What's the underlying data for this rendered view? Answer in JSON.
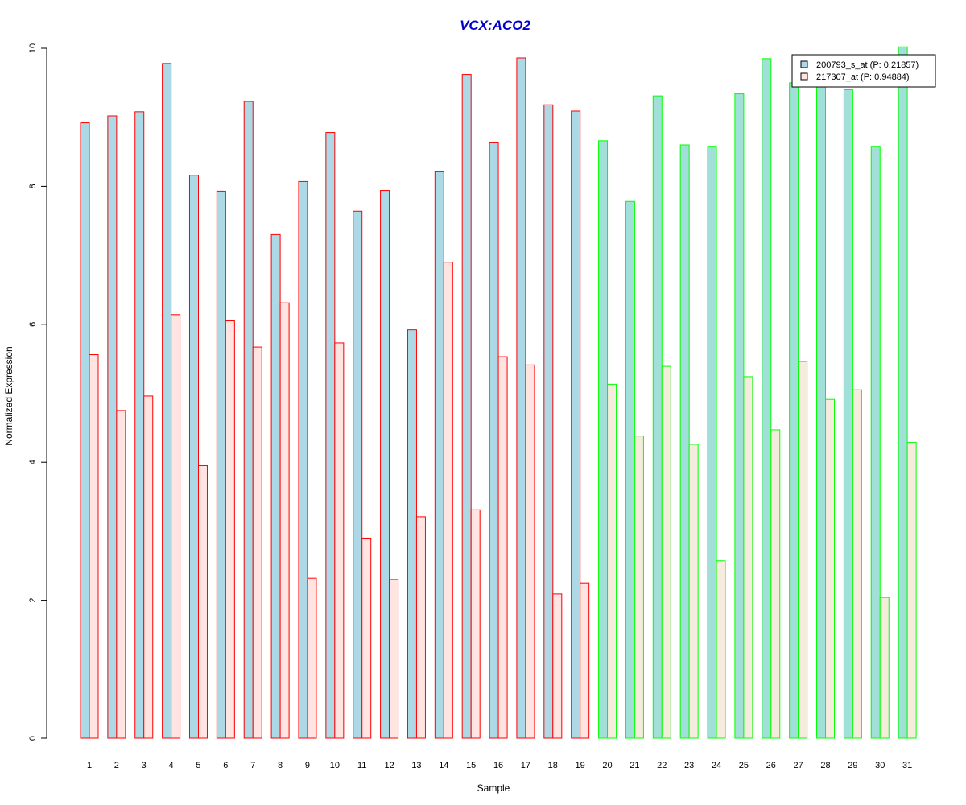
{
  "chart_data": {
    "type": "bar",
    "title": "VCX:ACO2",
    "xlabel": "Sample",
    "ylabel": "Normalized Expression",
    "ylim": [
      0,
      10
    ],
    "yticks": [
      0,
      2,
      4,
      6,
      8,
      10
    ],
    "grid": false,
    "legend_position": "top-right",
    "categories": [
      "1",
      "2",
      "3",
      "4",
      "5",
      "6",
      "7",
      "8",
      "9",
      "10",
      "11",
      "12",
      "13",
      "14",
      "15",
      "16",
      "17",
      "18",
      "19",
      "20",
      "21",
      "22",
      "23",
      "24",
      "25",
      "26",
      "27",
      "28",
      "29",
      "30",
      "31"
    ],
    "series": [
      {
        "name": "200793_s_at (P: 0.21857)",
        "values": [
          8.92,
          9.02,
          9.08,
          9.78,
          8.16,
          7.93,
          9.23,
          7.3,
          8.07,
          8.78,
          7.64,
          7.94,
          5.92,
          8.21,
          9.62,
          8.63,
          9.86,
          9.18,
          9.09,
          8.66,
          7.78,
          9.31,
          8.6,
          8.58,
          9.34,
          9.85,
          9.5,
          9.53,
          9.4,
          8.58,
          10.02
        ]
      },
      {
        "name": "217307_at (P: 0.94884)",
        "values": [
          5.56,
          4.75,
          4.96,
          6.14,
          3.95,
          6.05,
          5.67,
          6.31,
          2.32,
          5.73,
          2.9,
          2.3,
          3.21,
          6.9,
          3.31,
          5.53,
          5.41,
          2.09,
          2.25,
          5.13,
          4.38,
          5.39,
          4.26,
          2.57,
          5.24,
          4.47,
          5.46,
          4.91,
          5.05,
          2.04,
          4.29
        ]
      }
    ],
    "group_split_index": 19,
    "colors": {
      "title": "#0000CC",
      "series1_fill": "#ADD8E6",
      "series2_fill": "#FFE4E1",
      "series1_fill_group2": "#A0E0D8",
      "series2_fill_group2": "#F5ECDD",
      "group1_border": "#FF0000",
      "group2_border": "#00FF00",
      "legend_border": "#000000",
      "axis": "#000000"
    }
  }
}
